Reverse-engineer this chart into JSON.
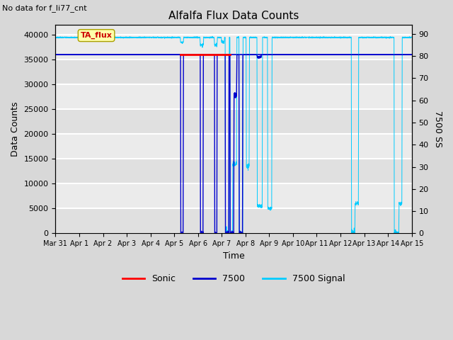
{
  "title": "Alfalfa Flux Data Counts",
  "no_data_text": "No data for f_li77_cnt",
  "ylabel_left": "Data Counts",
  "ylabel_right": "7500 SS",
  "xlabel": "Time",
  "ylim_left": [
    0,
    42000
  ],
  "ylim_right": [
    0,
    94
  ],
  "yticks_left": [
    0,
    5000,
    10000,
    15000,
    20000,
    25000,
    30000,
    35000,
    40000
  ],
  "yticks_right": [
    0,
    10,
    20,
    30,
    40,
    50,
    60,
    70,
    80,
    90
  ],
  "fig_bg_color": "#d8d8d8",
  "plot_bg_color": "#e8e8e8",
  "ta_flux_label": "TA_flux",
  "legend_entries": [
    "Sonic",
    "7500",
    "7500 Signal"
  ],
  "legend_colors": [
    "#ff0000",
    "#0000cd",
    "#00ccff"
  ],
  "x_tick_labels": [
    "Mar 31",
    "Apr 1",
    "Apr 2",
    "Apr 3",
    "Apr 4",
    "Apr 5",
    "Apr 6",
    "Apr 7",
    "Apr 8",
    "Apr 9",
    "Apr 10",
    "Apr 11",
    "Apr 12",
    "Apr 13",
    "Apr 14",
    "Apr 15"
  ],
  "line_7500_level": 36000,
  "line_7500_color": "#0000cd",
  "line_7500_signal_color": "#00ccff",
  "line_sonic_color": "#ff0000",
  "cyan_base": 39500
}
